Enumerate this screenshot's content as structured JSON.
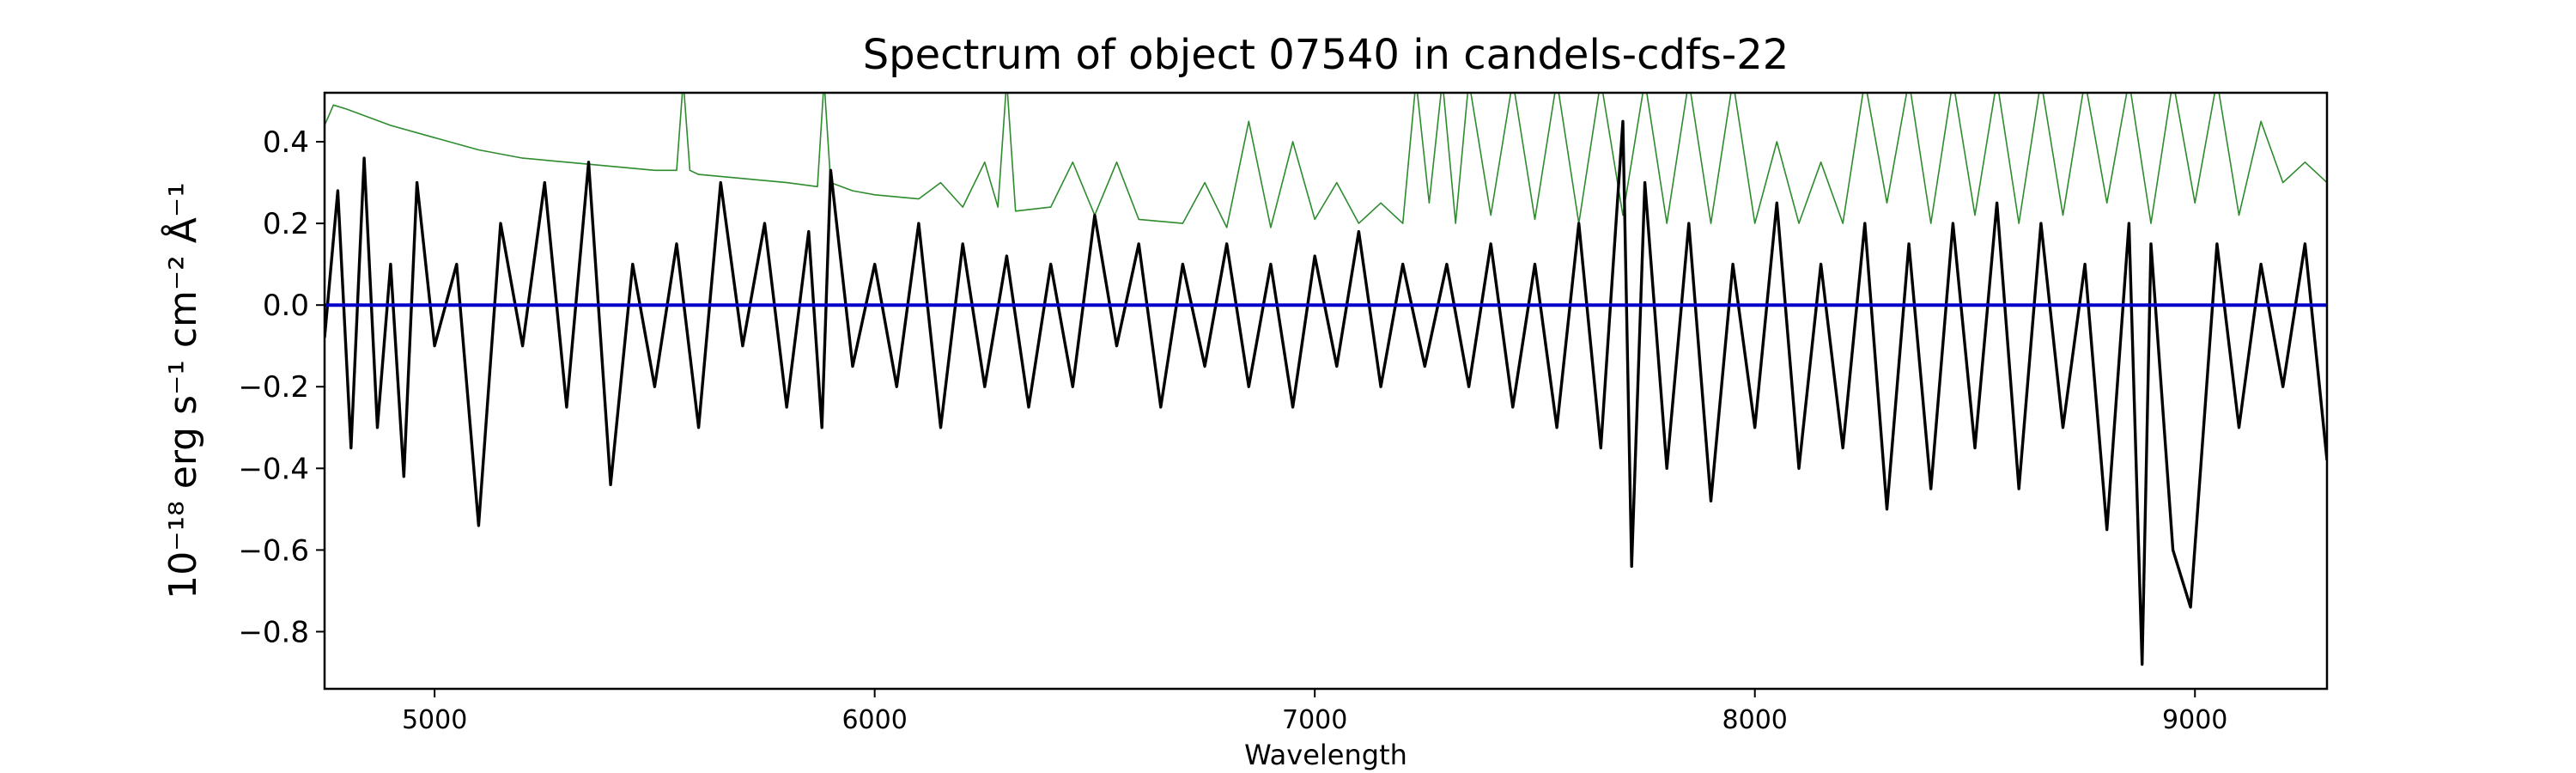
{
  "chart_data": {
    "type": "line",
    "title": "Spectrum of object 07540 in candels-cdfs-22",
    "xlabel": "Wavelength",
    "ylabel": "10⁻¹⁸ erg s⁻¹ cm⁻² Å⁻¹",
    "xlim": [
      4750,
      9300
    ],
    "ylim": [
      -0.94,
      0.52
    ],
    "xticks": [
      5000,
      6000,
      7000,
      8000,
      9000
    ],
    "xtick_labels": [
      "5000",
      "6000",
      "7000",
      "8000",
      "9000"
    ],
    "yticks": [
      -0.8,
      -0.6,
      -0.4,
      -0.2,
      0.0,
      0.2,
      0.4
    ],
    "ytick_labels": [
      "−0.8",
      "−0.6",
      "−0.4",
      "−0.2",
      "0.0",
      "0.2",
      "0.4"
    ],
    "grid": false,
    "legend": "none",
    "series": [
      {
        "role": "flux",
        "color": "#000000",
        "x": [
          4750,
          4780,
          4810,
          4840,
          4870,
          4900,
          4930,
          4960,
          5000,
          5050,
          5100,
          5150,
          5200,
          5250,
          5300,
          5350,
          5400,
          5450,
          5500,
          5550,
          5600,
          5650,
          5700,
          5750,
          5800,
          5850,
          5880,
          5900,
          5950,
          6000,
          6050,
          6100,
          6150,
          6200,
          6250,
          6300,
          6350,
          6400,
          6450,
          6500,
          6550,
          6600,
          6650,
          6700,
          6750,
          6800,
          6850,
          6900,
          6950,
          7000,
          7050,
          7100,
          7150,
          7200,
          7250,
          7300,
          7350,
          7400,
          7450,
          7500,
          7550,
          7600,
          7650,
          7700,
          7720,
          7750,
          7800,
          7850,
          7900,
          7950,
          8000,
          8050,
          8100,
          8150,
          8200,
          8250,
          8300,
          8350,
          8400,
          8450,
          8500,
          8550,
          8600,
          8650,
          8700,
          8750,
          8800,
          8850,
          8880,
          8900,
          8950,
          8990,
          9050,
          9100,
          9150,
          9200,
          9250,
          9300
        ],
        "y": [
          -0.08,
          0.28,
          -0.35,
          0.36,
          -0.3,
          0.1,
          -0.42,
          0.3,
          -0.1,
          0.1,
          -0.54,
          0.2,
          -0.1,
          0.3,
          -0.25,
          0.35,
          -0.44,
          0.1,
          -0.2,
          0.15,
          -0.3,
          0.3,
          -0.1,
          0.2,
          -0.25,
          0.18,
          -0.3,
          0.33,
          -0.15,
          0.1,
          -0.2,
          0.2,
          -0.3,
          0.15,
          -0.2,
          0.12,
          -0.25,
          0.1,
          -0.2,
          0.22,
          -0.1,
          0.15,
          -0.25,
          0.1,
          -0.15,
          0.15,
          -0.2,
          0.1,
          -0.25,
          0.12,
          -0.15,
          0.18,
          -0.2,
          0.1,
          -0.15,
          0.1,
          -0.2,
          0.15,
          -0.25,
          0.1,
          -0.3,
          0.2,
          -0.35,
          0.45,
          -0.64,
          0.3,
          -0.4,
          0.2,
          -0.48,
          0.1,
          -0.3,
          0.25,
          -0.4,
          0.1,
          -0.35,
          0.2,
          -0.5,
          0.15,
          -0.45,
          0.2,
          -0.35,
          0.25,
          -0.45,
          0.2,
          -0.3,
          0.1,
          -0.55,
          0.2,
          -0.88,
          0.15,
          -0.6,
          -0.74,
          0.15,
          -0.3,
          0.1,
          -0.2,
          0.15,
          -0.38
        ]
      },
      {
        "role": "zero-level",
        "color": "#0000cc",
        "x": [
          4750,
          9300
        ],
        "y": [
          0.0,
          0.0
        ]
      },
      {
        "role": "noise",
        "color": "#2e8b2e",
        "x": [
          4750,
          4770,
          4800,
          4850,
          4900,
          5000,
          5100,
          5200,
          5300,
          5400,
          5500,
          5550,
          5565,
          5580,
          5600,
          5700,
          5800,
          5870,
          5885,
          5900,
          5950,
          6000,
          6100,
          6150,
          6200,
          6250,
          6280,
          6300,
          6320,
          6400,
          6450,
          6500,
          6550,
          6600,
          6700,
          6750,
          6800,
          6850,
          6900,
          6950,
          7000,
          7050,
          7100,
          7150,
          7200,
          7230,
          7260,
          7290,
          7320,
          7350,
          7400,
          7450,
          7500,
          7550,
          7600,
          7650,
          7700,
          7750,
          7800,
          7850,
          7900,
          7950,
          8000,
          8050,
          8100,
          8150,
          8200,
          8250,
          8300,
          8350,
          8400,
          8450,
          8500,
          8550,
          8600,
          8650,
          8700,
          8750,
          8800,
          8850,
          8900,
          8950,
          9000,
          9050,
          9100,
          9150,
          9200,
          9250,
          9300
        ],
        "y": [
          0.44,
          0.49,
          0.48,
          0.46,
          0.44,
          0.41,
          0.38,
          0.36,
          0.35,
          0.34,
          0.33,
          0.33,
          0.55,
          0.33,
          0.32,
          0.31,
          0.3,
          0.29,
          0.55,
          0.3,
          0.28,
          0.27,
          0.26,
          0.3,
          0.24,
          0.35,
          0.24,
          0.55,
          0.23,
          0.24,
          0.35,
          0.22,
          0.35,
          0.21,
          0.2,
          0.3,
          0.19,
          0.45,
          0.19,
          0.4,
          0.21,
          0.3,
          0.2,
          0.25,
          0.2,
          0.55,
          0.25,
          0.55,
          0.2,
          0.55,
          0.22,
          0.55,
          0.21,
          0.55,
          0.2,
          0.55,
          0.22,
          0.55,
          0.2,
          0.55,
          0.2,
          0.55,
          0.2,
          0.4,
          0.2,
          0.35,
          0.2,
          0.55,
          0.25,
          0.55,
          0.2,
          0.55,
          0.22,
          0.55,
          0.2,
          0.55,
          0.22,
          0.55,
          0.25,
          0.55,
          0.2,
          0.55,
          0.25,
          0.55,
          0.22,
          0.45,
          0.3,
          0.35,
          0.3
        ]
      }
    ]
  }
}
